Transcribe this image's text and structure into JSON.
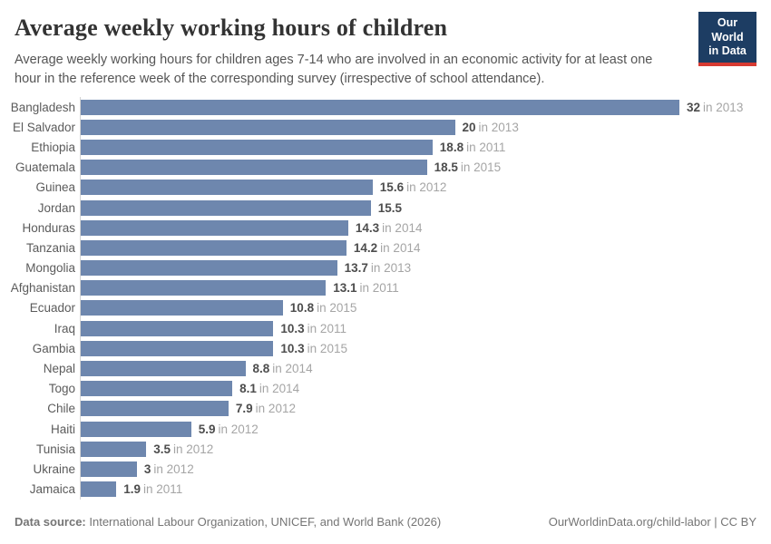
{
  "header": {
    "title": "Average weekly working hours of children",
    "subtitle": "Average weekly working hours for children ages 7-14 who are involved in an economic activity for at least one hour in the reference week of the corresponding survey (irrespective of school attendance).",
    "logo": {
      "line1": "Our World",
      "line2": "in Data"
    }
  },
  "chart_data": {
    "type": "bar",
    "orientation": "horizontal",
    "title": "Average weekly working hours of children",
    "xlabel": "",
    "ylabel": "",
    "xlim": [
      0,
      32
    ],
    "grid": false,
    "legend": "none",
    "categories": [
      "Bangladesh",
      "El Salvador",
      "Ethiopia",
      "Guatemala",
      "Guinea",
      "Jordan",
      "Honduras",
      "Tanzania",
      "Mongolia",
      "Afghanistan",
      "Ecuador",
      "Iraq",
      "Gambia",
      "Nepal",
      "Togo",
      "Chile",
      "Haiti",
      "Tunisia",
      "Ukraine",
      "Jamaica"
    ],
    "values": [
      32,
      20,
      18.8,
      18.5,
      15.6,
      15.5,
      14.3,
      14.2,
      13.7,
      13.1,
      10.8,
      10.3,
      10.3,
      8.8,
      8.1,
      7.9,
      5.9,
      3.5,
      3,
      1.9
    ],
    "value_labels": [
      "32",
      "20",
      "18.8",
      "18.5",
      "15.6",
      "15.5",
      "14.3",
      "14.2",
      "13.7",
      "13.1",
      "10.8",
      "10.3",
      "10.3",
      "8.8",
      "8.1",
      "7.9",
      "5.9",
      "3.5",
      "3",
      "1.9"
    ],
    "year_labels": [
      "in 2013",
      "in 2013",
      "in 2011",
      "in 2015",
      "in 2012",
      "",
      "in 2014",
      "in 2014",
      "in 2013",
      "in 2011",
      "in 2015",
      "in 2011",
      "in 2015",
      "in 2014",
      "in 2014",
      "in 2012",
      "in 2012",
      "in 2012",
      "in 2012",
      "in 2011"
    ]
  },
  "footer": {
    "source_label": "Data source:",
    "source_text": "International Labour Organization, UNICEF, and World Bank (2026)",
    "right_text": "OurWorldinData.org/child-labor | CC BY"
  },
  "colors": {
    "bar": "#6e87ae",
    "logo_bg": "#1d3d63",
    "logo_stripe": "#d73a32",
    "axis_line": "#d3d3d3"
  }
}
